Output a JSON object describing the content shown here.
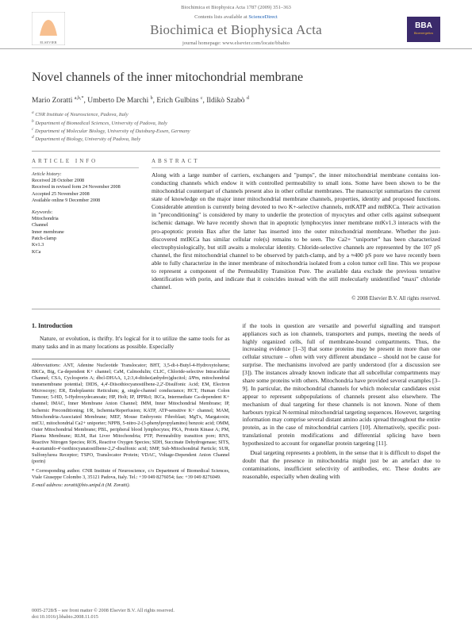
{
  "journal": {
    "citation": "Biochimica et Biophysica Acta 1787 (2009) 351–363",
    "sciencedirect_prefix": "Contents lists available at ",
    "sciencedirect_link": "ScienceDirect",
    "title": "Biochimica et Biophysica Acta",
    "homepage": "journal homepage: www.elsevier.com/locate/bbabio",
    "publisher": "ELSEVIER",
    "bba_tag": "BBA",
    "bba_sub": "Bioenergetics"
  },
  "article": {
    "title": "Novel channels of the inner mitochondrial membrane",
    "authors_html": "Mario Zoratti <sup>a,b,*</sup>, Umberto De Marchi <sup>b</sup>, Erich Gulbins <sup>c</sup>, Ildikò Szabò <sup>d</sup>",
    "affiliations": [
      "a CNR Institute of Neuroscience, Padova, Italy",
      "b Department of Biomedical Sciences, University of Padova, Italy",
      "c Department of Molecular Biology, University of Duisburg-Essen, Germany",
      "d Department of Biology, University of Padova, Italy"
    ]
  },
  "info": {
    "heading": "ARTICLE INFO",
    "history_label": "Article history:",
    "history": [
      "Received 28 October 2008",
      "Received in revised form 24 November 2008",
      "Accepted 25 November 2008",
      "Available online 9 December 2008"
    ],
    "keywords_label": "Keywords:",
    "keywords": [
      "Mitochondria",
      "Channel",
      "Inner membrane",
      "Patch-clamp",
      "Kv1.3",
      "KCa"
    ]
  },
  "abstract": {
    "heading": "ABSTRACT",
    "text": "Along with a large number of carriers, exchangers and \"pumps\", the inner mitochondrial membrane contains ion-conducting channels which endow it with controlled permeability to small ions. Some have been shown to be the mitochondrial counterpart of channels present also in other cellular membranes. The manuscript summarizes the current state of knowledge on the major inner mitochondrial membrane channels, properties, identity and proposed functions. Considerable attention is currently being devoted to two K+-selective channels, mtKATP and mtBKCa. Their activation in \"preconditioning\" is considered by many to underlie the protection of myocytes and other cells against subsequent ischemic damage. We have recently shown that in apoptotic lymphocytes inner membrane mtKv1.3 interacts with the pro-apoptotic protein Bax after the latter has inserted into the outer mitochondrial membrane. Whether the just-discovered mtIKCa has similar cellular role(s) remains to be seen. The Ca2+ \"uniporter\" has been characterized electrophysiologically, but still awaits a molecular identity. Chloride-selective channels are represented by the 107 pS channel, the first mitochondrial channel to be observed by patch-clamp, and by a ≈400 pS pore we have recently been able to fully characterize in the inner membrane of mitochondria isolated from a colon tumor cell line. This we propose to represent a component of the Permeability Transition Pore. The available data exclude the previous tentative identification with porin, and indicate that it coincides instead with the still molecularly unidentified \"maxi\" chloride channel.",
    "copyright": "© 2008 Elsevier B.V. All rights reserved."
  },
  "body": {
    "section1_heading": "1. Introduction",
    "left_p1": "Nature, or evolution, is thrifty. It's logical for it to utilize the same tools for as many tasks and in as many locations as possible. Especially",
    "abbrev_label": "Abbreviations:",
    "abbrev_text": " ANT, Adenine Nucleotide Translocator; BHT, 3,5-di-t-Butyl-4-Hydroxytoluene; BKCa, Big, Ca-dependent K+ channel; CaM, Calmodulin; CLIC, Chloride-selective Intracellular Channel; CSA, Cyclosporin A; dbcl-DHAA, 1,2:3,4-diidso(anhydro)glucitol; ΔΨm, mitochondrial transmembrane potential; DIDS, 4,4'-Diisothiocyanostilbene-2,2'-Disulfonic Acid; EM, Electron Microscopy; ER, Endoplasmic Reticulum; g, single-channel conductance; HCT, Human Colon Tumour; 5-HD, 5-Hydroxydecanoate; HP, Holt; IP, IPPRεI; IKCa, Intermediate Ca-dependent K+ channel; IMAC, Inner Membrane Anion Channel; IMM, Inner Mitochondrial Membrane; IP, Ischemic Preconditioning; I/R, Ischemia/Reperfusion; KATP, ATP-sensitive K+ channel; MAM, Mitochondria-Associated Membrane; MEF, Mouse Embryonic Fibroblast; MgTx, Margatoxin; mtCU, mitochondrial Ca2+ uniporter; NPPB, 5-nitro-2-(3-phenylpropylamino) benzoic acid; OMM, Outer Mitochondrial Membrane; PBL, peripheral blood lymphocytes; PKA, Protein Kinase A; PM, Plasma Membrane; RLM, Rat Liver Mitochondria; PTP, Permeability transition pore; RNS, Reactive Nitrogen Species; ROS, Reactive Oxygen Species; SDH, Succinate Dehydrogenase; SITS, 4-acetamido-4'-isothiocyanatostilbene-2,2'-disulfonic acid; SMP, Sub-Mitochondrial Particle; SUR, Sulfonylurea Receptor; TSPO, Translocator Protein; VDAC, Voltage-Dependent Anion Channel (porin)",
    "corresp": "* Corresponding author. CNR Institute of Neuroscience, c/o Department of Biomedical Sciences, Viale Giuseppe Colombo 3, 35121 Padova, Italy. Tel.: +39 049 8276054; fax: +39 049 8276049.",
    "email": "E-mail address: zoratti@bio.unipd.it (M. Zoratti).",
    "right_text": "if the tools in question are versatile and powerful signalling and transport appliances such as ion channels, transporters and pumps, meeting the needs of highly organized cells, full of membrane-bound compartments. Thus, the increasing evidence [1–3] that some proteins may be present in more than one cellular structure – often with very different abundance – should not be cause for surprise. The mechanisms involved are partly understood (for a discussion see [3]). The instances already known indicate that all subcellular compartments may share some proteins with others. Mitochondria have provided several examples [3–9]. In particular, the mitochondrial channels for which molecular candidates exist appear to represent subpopulations of channels present also elsewhere. The mechanism of dual targeting for these channels is not known. None of them harbours typical N-terminal mitochondrial targeting sequences. However, targeting information may comprise several distant amino acids spread throughout the entire protein, as in the case of mitochondrial carriers [10]. Alternatively, specific post-translational protein modifications and differential splicing have been hypothesized to account for organellar protein targeting [11].",
    "right_p2": "Dual targeting represents a problem, in the sense that it is difficult to dispel the doubt that the presence in mitochondria might just be an artefact due to contaminations, insufficient selectivity of antibodies, etc. These doubts are reasonable, especially when dealing with"
  },
  "footer": {
    "left": "0005-2728/$ – see front matter © 2008 Elsevier B.V. All rights reserved.",
    "doi": "doi:10.1016/j.bbabio.2008.11.015"
  },
  "colors": {
    "link": "#1a5fb4",
    "elsevier_orange": "#ff6a00",
    "bba_purple": "#3b2a6b"
  }
}
